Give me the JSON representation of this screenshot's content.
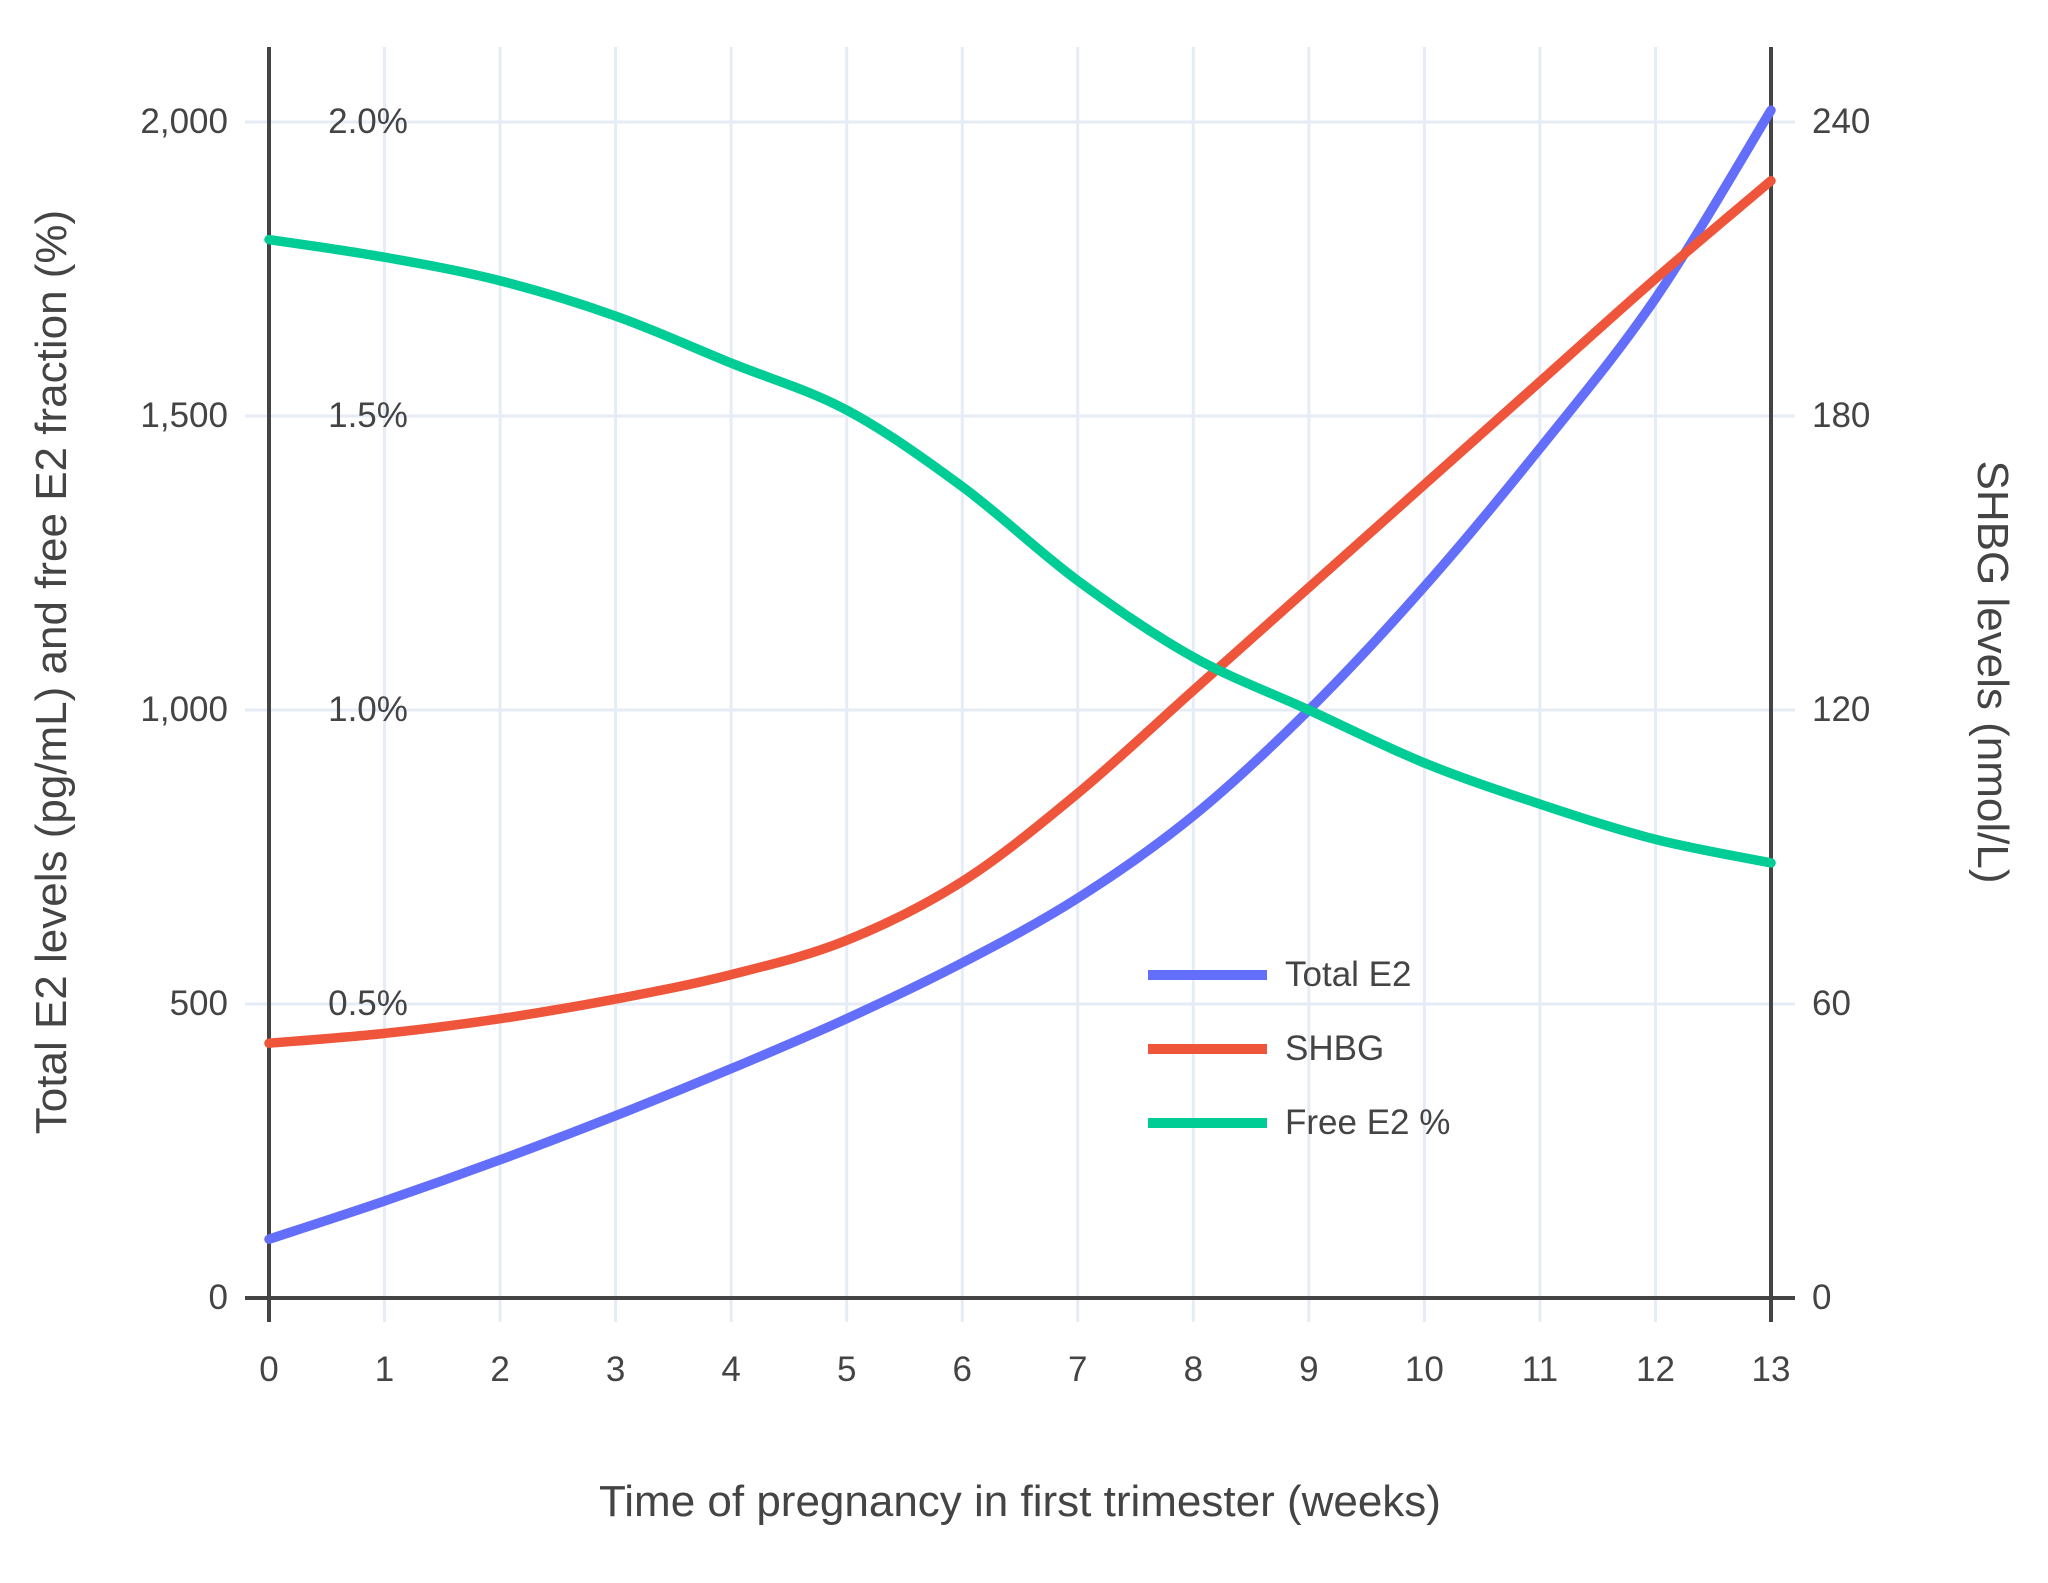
{
  "chart_data": {
    "type": "line",
    "title": "",
    "xlabel": "Time of pregnancy in first trimester (weeks)",
    "ylabel_left": "Total E2 levels (pg/mL) and free E2 fraction (%)",
    "ylabel_right": "SHBG levels (nmol/L)",
    "x": [
      0,
      1,
      2,
      3,
      4,
      5,
      6,
      7,
      8,
      9,
      10,
      11,
      12,
      13
    ],
    "x_ticks": [
      "0",
      "1",
      "2",
      "3",
      "4",
      "5",
      "6",
      "7",
      "8",
      "9",
      "10",
      "11",
      "12",
      "13"
    ],
    "series": [
      {
        "name": "Total E2",
        "color": "#636EFA",
        "axis": "left",
        "units": "pg/mL",
        "values": [
          100,
          165,
          235,
          310,
          390,
          475,
          570,
          680,
          820,
          1000,
          1210,
          1445,
          1700,
          2020
        ]
      },
      {
        "name": "SHBG",
        "color": "#EF553B",
        "axis": "right",
        "units": "nmol/L",
        "values": [
          52,
          54,
          57,
          61,
          66,
          73,
          85,
          103,
          124,
          145,
          166,
          187,
          208,
          228
        ]
      },
      {
        "name": "Free E2 %",
        "color": "#00CC96",
        "axis": "left_percent",
        "units": "%",
        "values": [
          1.8,
          1.77,
          1.73,
          1.67,
          1.59,
          1.51,
          1.38,
          1.22,
          1.09,
          1.0,
          0.91,
          0.84,
          0.78,
          0.74
        ]
      }
    ],
    "left_axis": {
      "ticks": [
        {
          "value": 0,
          "label": "0"
        },
        {
          "value": 500,
          "label": "500"
        },
        {
          "value": 1000,
          "label": "1,000"
        },
        {
          "value": 1500,
          "label": "1,500"
        },
        {
          "value": 2000,
          "label": "2,000"
        }
      ],
      "range": [
        0,
        2127
      ]
    },
    "right_axis": {
      "ticks": [
        {
          "value": 0,
          "label": "0"
        },
        {
          "value": 60,
          "label": "60"
        },
        {
          "value": 120,
          "label": "120"
        },
        {
          "value": 180,
          "label": "180"
        },
        {
          "value": 240,
          "label": "240"
        }
      ],
      "range": [
        0,
        255
      ]
    },
    "percent_labels": [
      {
        "value": 500,
        "label": "0.5%"
      },
      {
        "value": 1000,
        "label": "1.0%"
      },
      {
        "value": 1500,
        "label": "1.5%"
      },
      {
        "value": 2000,
        "label": "2.0%"
      }
    ],
    "grid": true,
    "legend_position": "middle-right",
    "colors": {
      "grid": "#E5ECF6",
      "axis_line": "#444444",
      "text": "#444444",
      "background": "#FFFFFF"
    }
  }
}
